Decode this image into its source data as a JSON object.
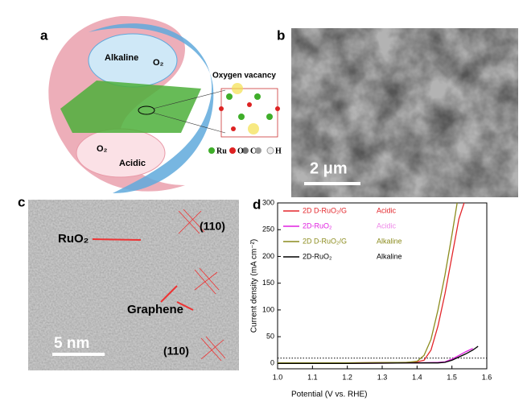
{
  "panel_a": {
    "label": "a",
    "alkaline": "Alkaline",
    "o2_top": "O₂",
    "oxygen_vacancy": "Oxygen vacancy",
    "o2_bottom": "O₂",
    "acidic": "Acidic",
    "legend": [
      "Ru",
      "O",
      "C",
      "H"
    ]
  },
  "panel_b": {
    "label": "b",
    "scale_bar": "2 μm"
  },
  "panel_c": {
    "label": "c",
    "ruo2": "RuO₂",
    "plane_top": "(110)",
    "graphene": "Graphene",
    "scale_bar": "5 nm",
    "plane_bottom": "(110)"
  },
  "panel_d_label": "d",
  "chart_data": {
    "type": "line",
    "xlabel": "Potential (V vs. RHE)",
    "ylabel": "Current density (mA cm⁻²)",
    "xlim": [
      1.0,
      1.6
    ],
    "xticks": [
      {
        "value": 1.0,
        "label": "1.0"
      },
      1.1,
      1.2,
      1.3,
      1.4,
      1.5,
      1.6
    ],
    "ylim": [
      -10,
      300
    ],
    "yticks": [
      0,
      50,
      100,
      150,
      200,
      250,
      300
    ],
    "grid": false,
    "hline": 10,
    "series": [
      {
        "name": "2D D-RuO₂/G",
        "condition": "Acidic",
        "color": "#e3262b",
        "condition_color": "#e3262b",
        "x": [
          1.0,
          1.2,
          1.38,
          1.4,
          1.42,
          1.44,
          1.46,
          1.48,
          1.5,
          1.51,
          1.52,
          1.535
        ],
        "values": [
          1,
          1,
          2,
          3,
          6,
          25,
          70,
          130,
          200,
          235,
          270,
          300
        ]
      },
      {
        "name": "2D-RuO₂",
        "condition": "Acidic",
        "color": "#e020e0",
        "condition_color": "#ee88e8",
        "x": [
          1.0,
          1.2,
          1.4,
          1.46,
          1.48,
          1.5,
          1.52,
          1.54,
          1.56
        ],
        "values": [
          0,
          0,
          1,
          2,
          3,
          8,
          15,
          22,
          28
        ]
      },
      {
        "name": "2D D-RuO₂/G",
        "condition": "Alkaline",
        "color": "#8c8c1e",
        "condition_color": "#8c8c1e",
        "x": [
          1.0,
          1.2,
          1.37,
          1.4,
          1.42,
          1.44,
          1.46,
          1.48,
          1.5,
          1.515
        ],
        "values": [
          1,
          1,
          2,
          4,
          15,
          45,
          100,
          165,
          240,
          300
        ]
      },
      {
        "name": "2D-RuO₂",
        "condition": "Alkaline",
        "color": "#000000",
        "condition_color": "#000000",
        "x": [
          1.0,
          1.2,
          1.4,
          1.46,
          1.48,
          1.5,
          1.52,
          1.54,
          1.56,
          1.575
        ],
        "values": [
          0,
          0,
          1,
          1,
          2,
          6,
          12,
          18,
          25,
          32
        ]
      }
    ]
  }
}
